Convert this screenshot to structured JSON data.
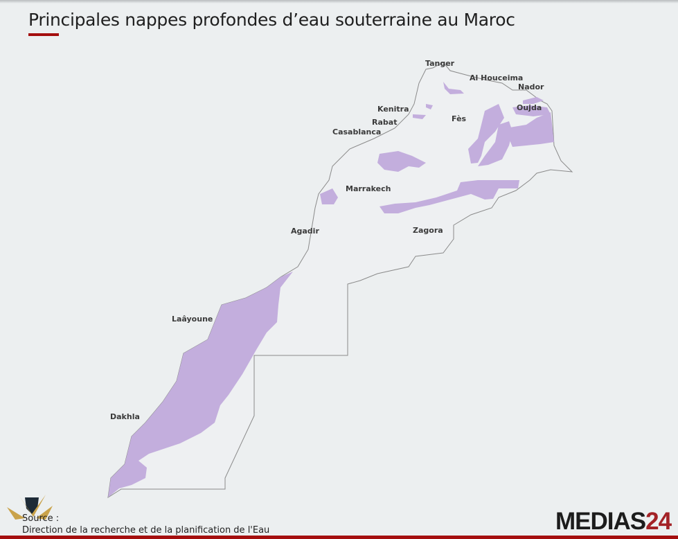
{
  "title": "Principales nappes profondes d’eau souterraine au Maroc",
  "colors": {
    "aquifer": "#c3aedd",
    "land": "#eef0f2",
    "border": "#8a8a8a",
    "accent": "#a40e0e"
  },
  "cities": {
    "tanger": "Tanger",
    "alhouceima": "Al Houceima",
    "nador": "Nador",
    "kenitra": "Kenitra",
    "rabat": "Rabat",
    "casablanca": "Casablanca",
    "fes": "Fès",
    "oujda": "Oujda",
    "marrakech": "Marrakech",
    "agadir": "Agadir",
    "zagora": "Zagora",
    "laayoune": "Laâyoune",
    "dakhla": "Dakhla"
  },
  "source": {
    "label": "Source :",
    "text": "Direction de la recherche et de la planification de l'Eau"
  },
  "brand": {
    "name": "MEDIAS",
    "number": "24"
  }
}
